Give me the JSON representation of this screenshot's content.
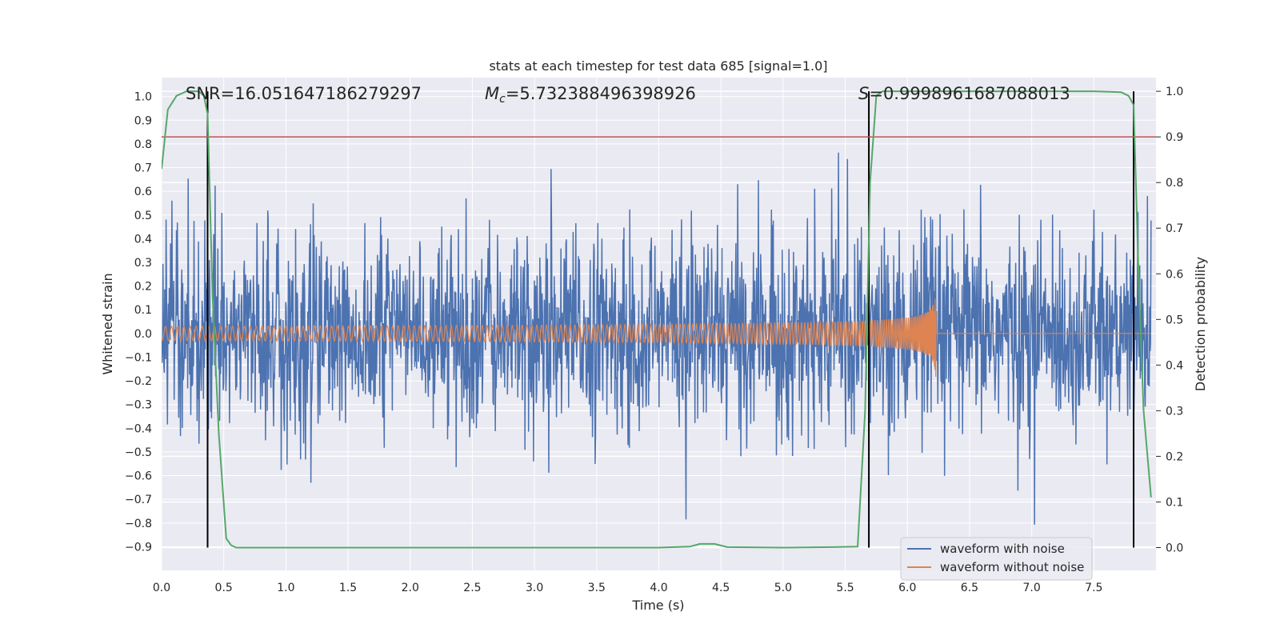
{
  "chart_data": {
    "type": "line",
    "title": "stats at each timestep for test data 685 [signal=1.0]",
    "xlabel": "Time (s)",
    "ylabel": "Whitened strain",
    "y2label": "Detection probability",
    "xlim": [
      0.0,
      8.0
    ],
    "ylim": [
      -1.0,
      1.08
    ],
    "y2lim": [
      -0.05,
      1.03
    ],
    "x_ticks": [
      0.0,
      0.5,
      1.0,
      1.5,
      2.0,
      2.5,
      3.0,
      3.5,
      4.0,
      4.5,
      5.0,
      5.5,
      6.0,
      6.5,
      7.0,
      7.5
    ],
    "x_tick_labels": [
      "0.0",
      "0.5",
      "1.0",
      "1.5",
      "2.0",
      "2.5",
      "3.0",
      "3.5",
      "4.0",
      "4.5",
      "5.0",
      "5.5",
      "6.0",
      "6.5",
      "7.0",
      "7.5"
    ],
    "y_ticks": [
      1.0,
      0.9,
      0.8,
      0.7,
      0.6,
      0.5,
      0.4,
      0.3,
      0.2,
      0.1,
      0.0,
      -0.1,
      -0.2,
      -0.3,
      -0.4,
      -0.5,
      -0.6,
      -0.7,
      -0.8,
      -0.9
    ],
    "y_tick_labels": [
      "1.0",
      "0.9",
      "0.8",
      "0.7",
      "0.6",
      "0.5",
      "0.4",
      "0.3",
      "0.2",
      "0.1",
      "0.0",
      "−0.1",
      "−0.2",
      "−0.3",
      "−0.4",
      "−0.5",
      "−0.6",
      "−0.7",
      "−0.8",
      "−0.9"
    ],
    "y2_ticks": [
      1.0,
      0.9,
      0.8,
      0.7,
      0.6,
      0.5,
      0.4,
      0.3,
      0.2,
      0.1,
      0.0
    ],
    "y2_tick_labels": [
      "1.0",
      "0.9",
      "0.8",
      "0.7",
      "0.6",
      "0.5",
      "0.4",
      "0.3",
      "0.2",
      "0.1",
      "0.0"
    ],
    "annotations": {
      "snr": "SNR=16.05164718627929 7",
      "mc_symbol": "M",
      "mc_sub": "c",
      "mc_value": "=5.732388496398926",
      "s_symbol": "S",
      "s_value": "=0.9998961687088013"
    },
    "threshold": {
      "value": 0.9,
      "axis": "y2",
      "color": "#c44e52"
    },
    "vertical_lines": [
      0.37,
      5.69,
      7.82
    ],
    "detection_probability": {
      "x": [
        0.0,
        0.05,
        0.12,
        0.2,
        0.3,
        0.34,
        0.37,
        0.41,
        0.46,
        0.52,
        0.56,
        0.6,
        1.0,
        2.0,
        3.0,
        4.0,
        4.25,
        4.33,
        4.45,
        4.55,
        5.0,
        5.4,
        5.6,
        5.66,
        5.7,
        5.75,
        5.8,
        6.5,
        7.0,
        7.5,
        7.72,
        7.78,
        7.82,
        7.86,
        7.9,
        7.96
      ],
      "y": [
        0.83,
        0.96,
        0.99,
        1.0,
        1.0,
        0.99,
        0.95,
        0.55,
        0.25,
        0.02,
        0.005,
        0.0,
        0.0,
        0.0,
        0.0,
        0.0,
        0.002,
        0.008,
        0.008,
        0.001,
        0.0,
        0.001,
        0.002,
        0.3,
        0.8,
        0.99,
        1.0,
        1.0,
        1.0,
        1.0,
        0.998,
        0.99,
        0.97,
        0.6,
        0.3,
        0.11
      ],
      "color": "#55a868"
    },
    "series": [
      {
        "name": "waveform with noise",
        "color": "#4c72b0"
      },
      {
        "name": "waveform without noise",
        "color": "#dd8452"
      }
    ],
    "grid": true,
    "legend_position": "lower-right"
  }
}
